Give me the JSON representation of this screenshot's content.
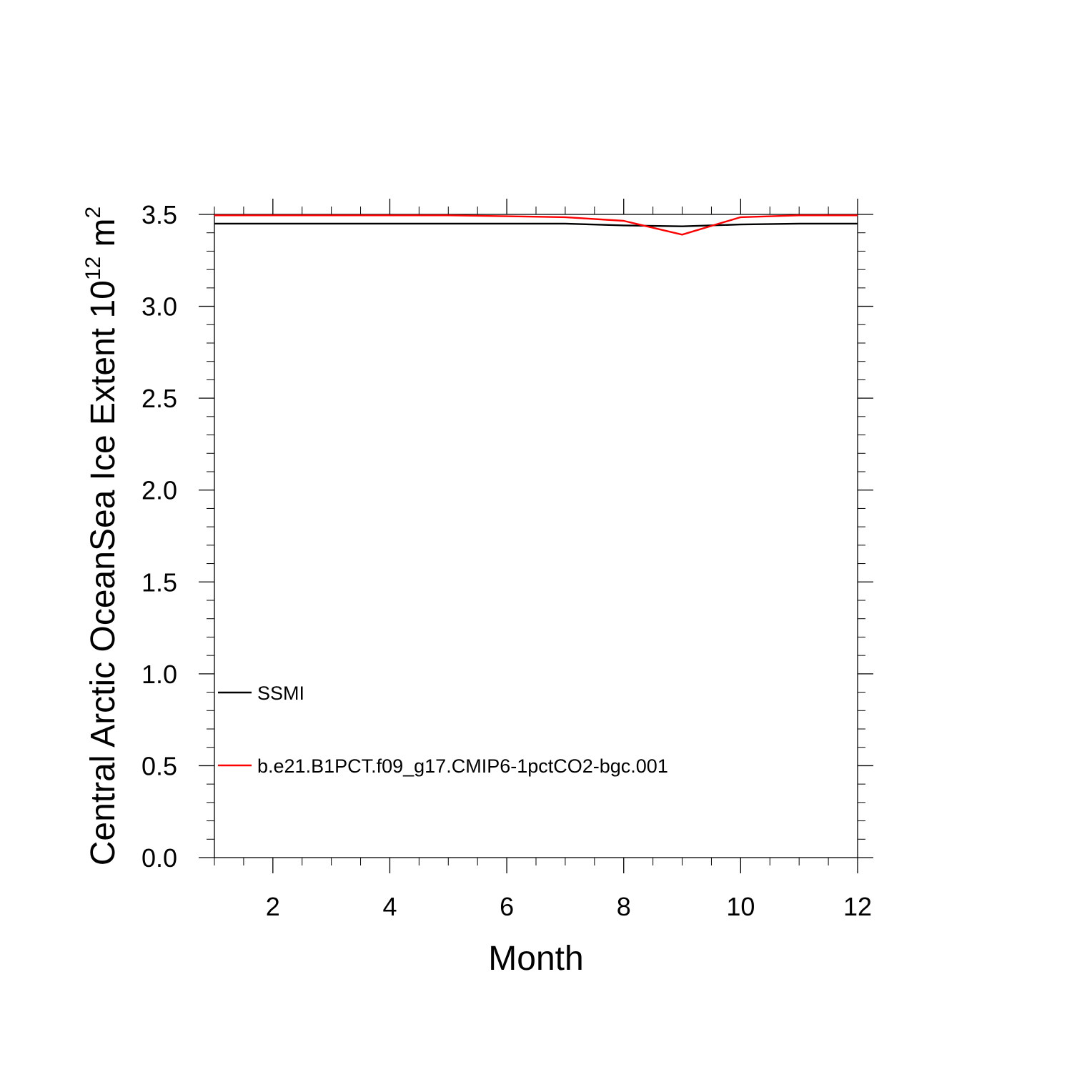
{
  "chart_data": {
    "type": "line",
    "title": "",
    "xlabel": "Month",
    "ylabel": {
      "text": "Central Arctic OceanSea Ice Extent 10",
      "exp1": "12",
      "unit": " m",
      "exp2": "2"
    },
    "x": [
      1,
      2,
      3,
      4,
      5,
      6,
      7,
      8,
      9,
      10,
      11,
      12
    ],
    "xlim": [
      1,
      12
    ],
    "ylim": [
      0,
      3.5
    ],
    "xticks": [
      2,
      4,
      6,
      8,
      10,
      12
    ],
    "yticks": [
      "0.0",
      "0.5",
      "1.0",
      "1.5",
      "2.0",
      "2.5",
      "3.0",
      "3.5"
    ],
    "grid": false,
    "legend_placement": "lower-left",
    "series": [
      {
        "name": "SSMI",
        "color": "#000000",
        "values": [
          3.45,
          3.45,
          3.45,
          3.45,
          3.45,
          3.45,
          3.45,
          3.44,
          3.435,
          3.445,
          3.45,
          3.45
        ]
      },
      {
        "name": "b.e21.B1PCT.f09_g17.CMIP6-1pctCO2-bgc.001",
        "color": "#ff0000",
        "values": [
          3.495,
          3.495,
          3.495,
          3.495,
          3.495,
          3.49,
          3.485,
          3.465,
          3.39,
          3.485,
          3.495,
          3.495
        ]
      }
    ]
  }
}
